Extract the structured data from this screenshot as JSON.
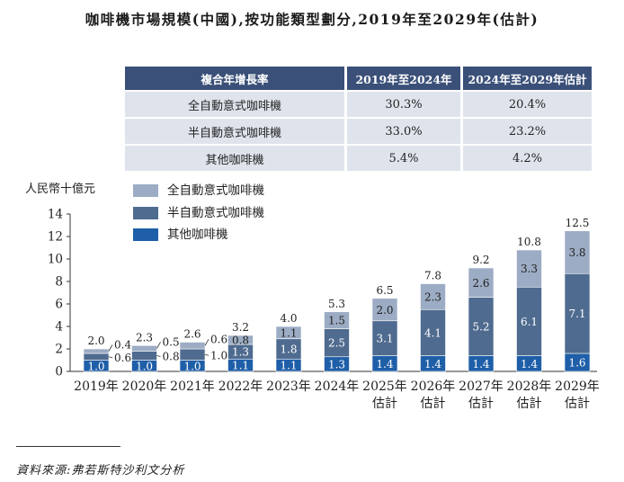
{
  "title": "咖啡機市場規模(中國),按功能類型劃分,2019年至2029年(估計)",
  "cagr_table": {
    "headers": [
      "複合年增長率",
      "2019年至2024年",
      "2024年至2029年估計"
    ],
    "rows": [
      {
        "label": "全自動意式咖啡機",
        "v1": "30.3%",
        "v2": "20.4%"
      },
      {
        "label": "半自動意式咖啡機",
        "v1": "33.0%",
        "v2": "23.2%"
      },
      {
        "label": "其他咖啡機",
        "v1": "5.4%",
        "v2": "4.2%"
      }
    ]
  },
  "chart_data": {
    "type": "bar",
    "stacked": true,
    "ylabel": "人民幣十億元",
    "ylim": [
      0,
      14
    ],
    "yticks": [
      0,
      2,
      4,
      6,
      8,
      10,
      12,
      14
    ],
    "categories": [
      {
        "line1": "2019年",
        "line2": ""
      },
      {
        "line1": "2020年",
        "line2": ""
      },
      {
        "line1": "2021年",
        "line2": ""
      },
      {
        "line1": "2022年",
        "line2": ""
      },
      {
        "line1": "2023年",
        "line2": ""
      },
      {
        "line1": "2024年",
        "line2": ""
      },
      {
        "line1": "2025年",
        "line2": "估計"
      },
      {
        "line1": "2026年",
        "line2": "估計"
      },
      {
        "line1": "2027年",
        "line2": "估計"
      },
      {
        "line1": "2028年",
        "line2": "估計"
      },
      {
        "line1": "2029年",
        "line2": "估計"
      }
    ],
    "series": [
      {
        "name": "其他咖啡機",
        "color": "#1f5fa8",
        "values": [
          1.0,
          1.0,
          1.0,
          1.1,
          1.1,
          1.3,
          1.4,
          1.4,
          1.4,
          1.4,
          1.6
        ],
        "labels": [
          "1.0",
          "1.0",
          "1.0",
          "1.1",
          "1.1",
          "1.3",
          "1.4",
          "1.4",
          "1.4",
          "1.4",
          "1.6"
        ]
      },
      {
        "name": "半自動意式咖啡機",
        "color": "#4f6b8f",
        "values": [
          0.6,
          0.8,
          1.0,
          1.3,
          1.8,
          2.5,
          3.1,
          4.1,
          5.2,
          6.1,
          7.1
        ],
        "labels": [
          "0.6",
          "0.8",
          "1.0",
          "1.3",
          "1.8",
          "2.5",
          "3.1",
          "4.1",
          "5.2",
          "6.1",
          "7.1"
        ]
      },
      {
        "name": "全自動意式咖啡機",
        "color": "#9cacc4",
        "values": [
          0.4,
          0.5,
          0.6,
          0.8,
          1.1,
          1.5,
          2.0,
          2.3,
          2.6,
          3.3,
          3.8
        ],
        "labels": [
          "0.4",
          "0.5",
          "0.6",
          "0.8",
          "1.1",
          "1.5",
          "2.0",
          "2.3",
          "2.6",
          "3.3",
          "3.8"
        ]
      }
    ],
    "totals": [
      "2.0",
      "2.3",
      "2.6",
      "3.2",
      "4.0",
      "5.3",
      "6.5",
      "7.8",
      "9.2",
      "10.8",
      "12.5"
    ],
    "legend": {
      "position": "top-left",
      "order": [
        "全自動意式咖啡機",
        "半自動意式咖啡機",
        "其他咖啡機"
      ]
    }
  },
  "source": "資料來源:弗若斯特沙利文分析"
}
